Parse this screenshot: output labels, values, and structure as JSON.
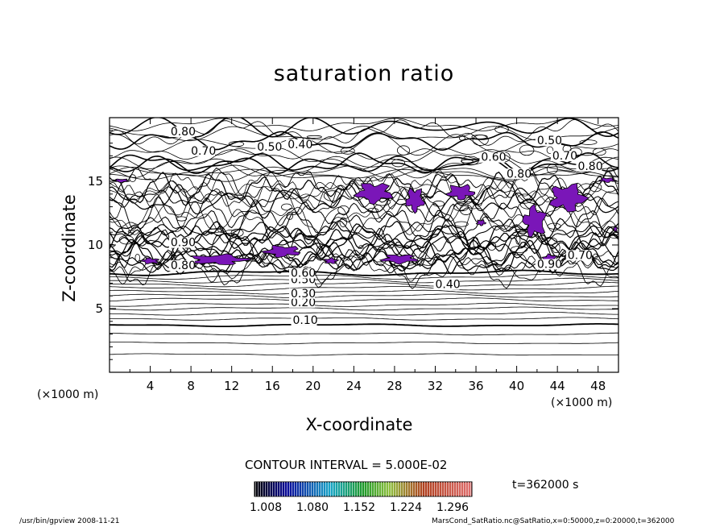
{
  "chart_data": {
    "type": "contour",
    "title": "saturation ratio",
    "xlabel": "X-coordinate",
    "ylabel": "Z-coordinate",
    "x_unit_left": "(×1000 m)",
    "x_unit_right": "(×1000 m)",
    "xlim": [
      0,
      50
    ],
    "ylim": [
      0,
      20
    ],
    "x_ticks": [
      "4",
      "8",
      "12",
      "16",
      "20",
      "24",
      "28",
      "32",
      "36",
      "40",
      "44",
      "48"
    ],
    "y_ticks": [
      "5",
      "10",
      "15"
    ],
    "contour_interval_text": "CONTOUR INTERVAL = 5.000E-02",
    "time_text": "t=362000 s",
    "colorbar": {
      "labels": [
        "1.008",
        "1.080",
        "1.152",
        "1.224",
        "1.296"
      ],
      "range": [
        1.008,
        1.296
      ]
    },
    "contour_labels": [
      {
        "text": "0.10",
        "x": 18.0,
        "z": 3.8
      },
      {
        "text": "0.20",
        "x": 17.8,
        "z": 5.2
      },
      {
        "text": "0.30",
        "x": 17.8,
        "z": 5.9
      },
      {
        "text": "0.50",
        "x": 17.8,
        "z": 7.0
      },
      {
        "text": "0.60",
        "x": 17.8,
        "z": 7.5
      },
      {
        "text": "0.40",
        "x": 32.0,
        "z": 6.6
      },
      {
        "text": "0.80",
        "x": 6.0,
        "z": 8.1
      },
      {
        "text": "0.90",
        "x": 6.0,
        "z": 9.9
      },
      {
        "text": "0.90",
        "x": 42.0,
        "z": 8.2
      },
      {
        "text": "0.70",
        "x": 45.0,
        "z": 8.9
      },
      {
        "text": "0.80",
        "x": 6.0,
        "z": 18.6
      },
      {
        "text": "0.70",
        "x": 8.0,
        "z": 17.1
      },
      {
        "text": "0.50",
        "x": 14.5,
        "z": 17.4
      },
      {
        "text": "0.40",
        "x": 17.5,
        "z": 17.6
      },
      {
        "text": "0.50",
        "x": 42.0,
        "z": 17.9
      },
      {
        "text": "0.60",
        "x": 36.5,
        "z": 16.6
      },
      {
        "text": "0.70",
        "x": 43.5,
        "z": 16.7
      },
      {
        "text": "0.80",
        "x": 46.0,
        "z": 15.9
      },
      {
        "text": "0.80",
        "x": 39.0,
        "z": 15.3
      }
    ],
    "supersaturated_regions": [
      {
        "x": [
          0.3,
          2.0
        ],
        "z": [
          14.9,
          15.2
        ]
      },
      {
        "x": [
          3.0,
          5.0
        ],
        "z": [
          8.5,
          9.0
        ]
      },
      {
        "x": [
          7.5,
          14.0
        ],
        "z": [
          8.4,
          9.3
        ]
      },
      {
        "x": [
          15.0,
          19.0
        ],
        "z": [
          9.0,
          10.0
        ]
      },
      {
        "x": [
          21.0,
          22.5
        ],
        "z": [
          8.5,
          9.0
        ]
      },
      {
        "x": [
          24.0,
          28.0
        ],
        "z": [
          13.2,
          15.0
        ]
      },
      {
        "x": [
          26.5,
          30.5
        ],
        "z": [
          8.5,
          9.3
        ]
      },
      {
        "x": [
          29.0,
          31.0
        ],
        "z": [
          12.5,
          14.6
        ]
      },
      {
        "x": [
          33.0,
          36.0
        ],
        "z": [
          13.5,
          14.8
        ]
      },
      {
        "x": [
          36.0,
          37.0
        ],
        "z": [
          11.5,
          12.0
        ]
      },
      {
        "x": [
          40.5,
          43.0
        ],
        "z": [
          10.5,
          13.2
        ]
      },
      {
        "x": [
          43.0,
          47.0
        ],
        "z": [
          12.5,
          14.9
        ]
      },
      {
        "x": [
          42.5,
          44.0
        ],
        "z": [
          8.6,
          9.3
        ]
      },
      {
        "x": [
          48.0,
          49.8
        ],
        "z": [
          14.9,
          15.3
        ]
      },
      {
        "x": [
          49.5,
          49.9
        ],
        "z": [
          11.0,
          11.5
        ]
      }
    ],
    "colors": {
      "supersaturated": "#7a16b8",
      "line": "#000000"
    }
  },
  "footer": {
    "left": "/usr/bin/gpview   2008-11-21",
    "right": "MarsCond_SatRatio.nc@SatRatio,x=0:50000,z=0:20000,t=362000"
  }
}
